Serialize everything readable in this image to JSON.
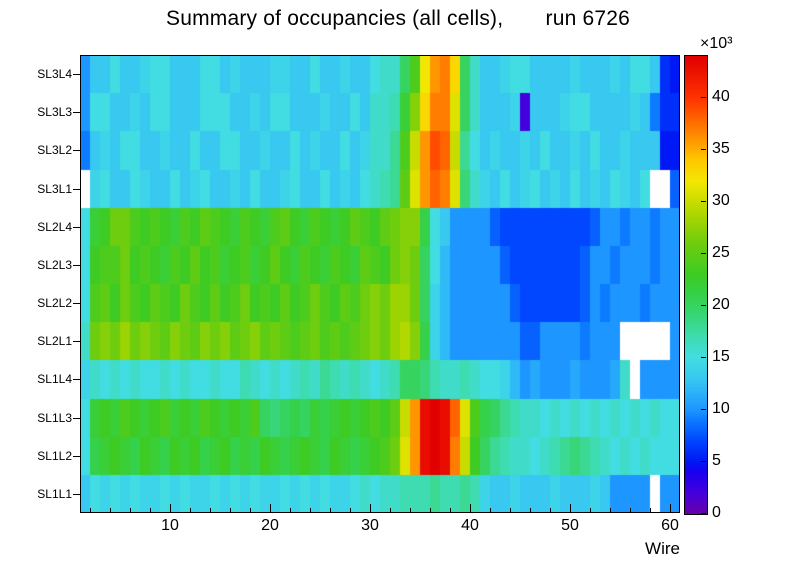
{
  "title": "Summary of occupancies (all cells),       run 6726",
  "chart_data": {
    "type": "heatmap",
    "title": "Summary of occupancies (all cells),       run 6726",
    "xlabel": "Wire",
    "x_range": [
      1,
      61
    ],
    "x_ticks": [
      10,
      20,
      30,
      40,
      50,
      60
    ],
    "x_minor_tick_step": 2,
    "value_scale_label": "×10³",
    "zmax": 44,
    "z_ticks": [
      0,
      5,
      10,
      15,
      20,
      25,
      30,
      35,
      40
    ],
    "units": "hits ×10³",
    "legend_position": "right-colorbar",
    "grid": false,
    "empty_bin_color": "#ffffff",
    "palette_stops": [
      [
        0.0,
        "#6600ab"
      ],
      [
        0.045,
        "#4400dd"
      ],
      [
        0.09,
        "#1a00ee"
      ],
      [
        0.114,
        "#0018f5"
      ],
      [
        0.16,
        "#0048ff"
      ],
      [
        0.205,
        "#0d7cff"
      ],
      [
        0.227,
        "#1e96ff"
      ],
      [
        0.273,
        "#2fb9f6"
      ],
      [
        0.295,
        "#38c8f0"
      ],
      [
        0.341,
        "#42dde2"
      ],
      [
        0.386,
        "#3edcb0"
      ],
      [
        0.432,
        "#38d678"
      ],
      [
        0.477,
        "#35d14a"
      ],
      [
        0.523,
        "#3ecb24"
      ],
      [
        0.591,
        "#6ecd0e"
      ],
      [
        0.636,
        "#9bd303"
      ],
      [
        0.682,
        "#c9dc00"
      ],
      [
        0.727,
        "#f2e702"
      ],
      [
        0.773,
        "#ffc800"
      ],
      [
        0.818,
        "#ff9600"
      ],
      [
        0.864,
        "#ff6400"
      ],
      [
        0.909,
        "#ff3300"
      ],
      [
        1.0,
        "#e10000"
      ]
    ],
    "rows_top_to_bottom": [
      {
        "label": "SL3L4",
        "values": [
          10,
          13,
          13,
          15,
          13,
          13,
          14,
          15,
          15,
          13,
          13,
          13,
          15,
          15,
          13,
          14,
          13,
          13,
          13,
          14,
          14,
          13,
          13,
          15,
          13,
          13,
          14,
          13,
          13,
          15,
          16,
          16,
          20,
          24,
          32,
          36,
          37,
          33,
          20,
          16,
          13,
          13,
          14,
          15,
          15,
          13,
          13,
          13,
          13,
          14,
          13,
          13,
          13,
          14,
          13,
          15,
          15,
          13,
          6,
          5
        ]
      },
      {
        "label": "SL3L3",
        "values": [
          10,
          15,
          15,
          13,
          13,
          14,
          13,
          15,
          15,
          13,
          13,
          13,
          15,
          15,
          15,
          13,
          13,
          14,
          13,
          15,
          15,
          13,
          13,
          13,
          14,
          13,
          13,
          15,
          13,
          16,
          16,
          17,
          22,
          27,
          33,
          37,
          37,
          31,
          20,
          16,
          13,
          13,
          13,
          14,
          2,
          13,
          13,
          13,
          14,
          15,
          15,
          13,
          13,
          13,
          13,
          14,
          13,
          9,
          6,
          6
        ]
      },
      {
        "label": "SL3L2",
        "values": [
          9,
          13,
          14,
          13,
          15,
          15,
          13,
          13,
          14,
          13,
          13,
          15,
          13,
          13,
          15,
          15,
          13,
          13,
          14,
          13,
          13,
          15,
          13,
          14,
          13,
          13,
          15,
          13,
          14,
          16,
          16,
          18,
          24,
          30,
          36,
          39,
          38,
          30,
          18,
          15,
          13,
          14,
          13,
          13,
          14,
          13,
          15,
          13,
          13,
          14,
          13,
          15,
          13,
          13,
          14,
          13,
          13,
          13,
          5,
          5
        ]
      },
      {
        "label": "SL3L1",
        "values": [
          null,
          14,
          15,
          13,
          13,
          15,
          14,
          13,
          13,
          15,
          13,
          14,
          15,
          13,
          13,
          14,
          13,
          15,
          13,
          13,
          14,
          15,
          13,
          13,
          15,
          13,
          14,
          13,
          15,
          16,
          17,
          18,
          25,
          31,
          36,
          38,
          37,
          31,
          19,
          16,
          14,
          13,
          15,
          13,
          14,
          15,
          13,
          14,
          13,
          15,
          13,
          14,
          13,
          15,
          14,
          13,
          15,
          null,
          null,
          8
        ]
      },
      {
        "label": "SL2L4",
        "values": [
          15,
          22,
          23,
          26,
          26,
          24,
          23,
          24,
          23,
          22,
          24,
          23,
          25,
          24,
          23,
          22,
          24,
          23,
          22,
          24,
          25,
          23,
          22,
          24,
          23,
          22,
          23,
          25,
          24,
          23,
          25,
          26,
          27,
          27,
          21,
          15,
          13,
          10,
          10,
          10,
          10,
          8,
          7,
          7,
          7,
          7,
          7,
          7,
          7,
          7,
          7,
          8,
          10,
          10,
          9,
          10,
          10,
          9,
          10,
          10
        ]
      },
      {
        "label": "SL2L3",
        "values": [
          15,
          23,
          24,
          24,
          26,
          23,
          24,
          23,
          22,
          24,
          23,
          25,
          23,
          24,
          22,
          23,
          24,
          22,
          23,
          25,
          23,
          22,
          24,
          23,
          22,
          24,
          23,
          22,
          25,
          24,
          23,
          26,
          27,
          26,
          20,
          15,
          12,
          10,
          10,
          10,
          10,
          10,
          8,
          7,
          7,
          7,
          7,
          7,
          7,
          7,
          8,
          10,
          10,
          9,
          10,
          10,
          10,
          9,
          10,
          10
        ]
      },
      {
        "label": "SL2L2",
        "values": [
          15,
          24,
          25,
          23,
          26,
          24,
          23,
          25,
          24,
          23,
          26,
          24,
          23,
          25,
          23,
          24,
          26,
          23,
          24,
          23,
          25,
          23,
          24,
          26,
          24,
          23,
          25,
          24,
          26,
          27,
          26,
          28,
          28,
          26,
          20,
          14,
          12,
          10,
          10,
          10,
          10,
          10,
          10,
          8,
          7,
          7,
          7,
          7,
          7,
          7,
          8,
          10,
          9,
          10,
          10,
          10,
          9,
          10,
          10,
          10
        ]
      },
      {
        "label": "SL2L1",
        "values": [
          16,
          26,
          27,
          26,
          28,
          26,
          27,
          26,
          25,
          27,
          26,
          25,
          27,
          26,
          27,
          25,
          26,
          27,
          25,
          26,
          25,
          24,
          25,
          26,
          24,
          25,
          24,
          25,
          26,
          27,
          26,
          28,
          29,
          27,
          21,
          14,
          12,
          10,
          10,
          10,
          10,
          10,
          10,
          10,
          8,
          8,
          10,
          10,
          10,
          10,
          9,
          10,
          10,
          10,
          null,
          null,
          null,
          null,
          null,
          10
        ]
      },
      {
        "label": "SL1L4",
        "values": [
          14,
          16,
          15,
          16,
          15,
          16,
          15,
          15,
          16,
          15,
          16,
          15,
          15,
          16,
          15,
          15,
          17,
          16,
          15,
          16,
          15,
          16,
          17,
          16,
          18,
          17,
          16,
          17,
          16,
          15,
          16,
          17,
          20,
          20,
          19,
          17,
          16,
          16,
          17,
          16,
          15,
          15,
          14,
          12,
          10,
          11,
          10,
          10,
          10,
          11,
          10,
          10,
          10,
          11,
          16,
          null,
          10,
          10,
          10,
          10
        ]
      },
      {
        "label": "SL1L3",
        "values": [
          15,
          22,
          23,
          22,
          24,
          23,
          22,
          23,
          24,
          22,
          23,
          22,
          24,
          23,
          22,
          23,
          22,
          24,
          20,
          19,
          20,
          21,
          20,
          22,
          21,
          22,
          23,
          22,
          23,
          24,
          23,
          25,
          30,
          36,
          43,
          44,
          43,
          38,
          31,
          24,
          21,
          20,
          18,
          17,
          16,
          16,
          15,
          16,
          15,
          16,
          15,
          16,
          15,
          16,
          15,
          16,
          15,
          16,
          15,
          15
        ]
      },
      {
        "label": "SL1L2",
        "values": [
          15,
          21,
          22,
          23,
          22,
          21,
          23,
          22,
          21,
          23,
          22,
          23,
          21,
          22,
          23,
          21,
          22,
          21,
          23,
          22,
          21,
          22,
          23,
          22,
          21,
          23,
          22,
          21,
          22,
          23,
          24,
          26,
          31,
          36,
          43,
          44,
          43,
          37,
          30,
          23,
          20,
          18,
          17,
          16,
          16,
          15,
          16,
          17,
          18,
          19,
          18,
          17,
          16,
          15,
          16,
          15,
          16,
          15,
          15,
          15
        ]
      },
      {
        "label": "SL1L1",
        "values": [
          13,
          15,
          14,
          15,
          14,
          15,
          14,
          14,
          15,
          14,
          15,
          14,
          14,
          15,
          14,
          15,
          14,
          15,
          14,
          14,
          15,
          14,
          15,
          14,
          15,
          14,
          14,
          15,
          16,
          15,
          16,
          16,
          17,
          17,
          17,
          18,
          17,
          17,
          18,
          17,
          14,
          13,
          13,
          14,
          13,
          13,
          13,
          14,
          13,
          13,
          13,
          14,
          13,
          10,
          10,
          10,
          10,
          null,
          10,
          10
        ]
      }
    ]
  }
}
